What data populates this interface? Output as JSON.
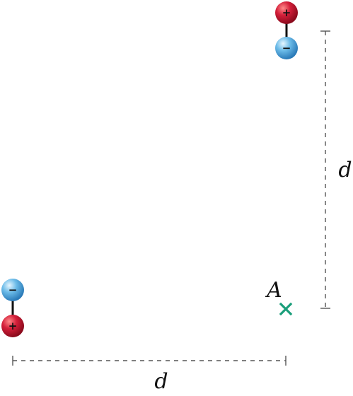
{
  "labels": {
    "point": "A",
    "vertical_distance": "d",
    "horizontal_distance": "d"
  },
  "dipoles": [
    {
      "top_sign": "+",
      "bottom_sign": "−"
    },
    {
      "top_sign": "−",
      "bottom_sign": "+"
    }
  ],
  "colors": {
    "positive": "#c8102e",
    "negative": "#5aaee0",
    "marker": "#1a9e7a",
    "dimension_line": "#555555"
  },
  "icons": {
    "marker": "x-mark-icon"
  }
}
